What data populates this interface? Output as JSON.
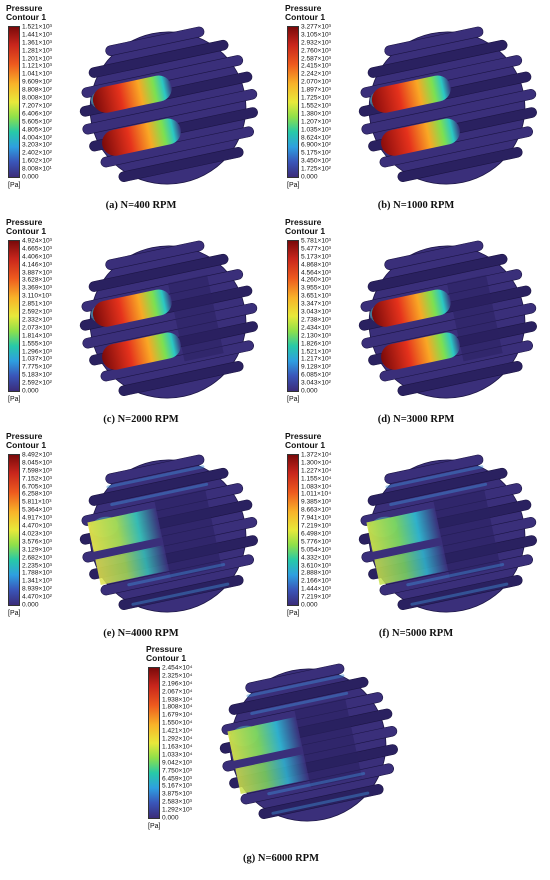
{
  "legend_title_line1": "Pressure",
  "legend_title_line2": "Contour 1",
  "unit": "[Pa]",
  "colors": {
    "background": "#ffffff",
    "body": "#3a2f7a",
    "body_dark": "#2a2160",
    "outline": "#1c1545"
  },
  "panels": [
    {
      "caption": "(a) N=400 RPM",
      "ticks": [
        "1.521×10³",
        "1.441×10³",
        "1.361×10³",
        "1.281×10³",
        "1.201×10³",
        "1.121×10³",
        "1.041×10³",
        "9.609×10²",
        "8.808×10²",
        "8.008×10²",
        "7.207×10²",
        "6.406×10²",
        "5.605×10²",
        "4.805×10²",
        "4.004×10²",
        "3.203×10²",
        "2.402×10²",
        "1.602×10²",
        "8.008×10¹",
        "0.000"
      ]
    },
    {
      "caption": "(b) N=1000 RPM",
      "ticks": [
        "3.277×10³",
        "3.105×10³",
        "2.932×10³",
        "2.760×10³",
        "2.587×10³",
        "2.415×10³",
        "2.242×10³",
        "2.070×10³",
        "1.897×10³",
        "1.725×10³",
        "1.552×10³",
        "1.380×10³",
        "1.207×10³",
        "1.035×10³",
        "8.624×10²",
        "6.900×10²",
        "5.175×10²",
        "3.450×10²",
        "1.725×10²",
        "0.000"
      ]
    },
    {
      "caption": "(c) N=2000 RPM",
      "ticks": [
        "4.924×10³",
        "4.665×10³",
        "4.406×10³",
        "4.146×10³",
        "3.887×10³",
        "3.628×10³",
        "3.369×10³",
        "3.110×10³",
        "2.851×10³",
        "2.592×10³",
        "2.332×10³",
        "2.073×10³",
        "1.814×10³",
        "1.555×10³",
        "1.296×10³",
        "1.037×10³",
        "7.775×10²",
        "5.183×10²",
        "2.592×10²",
        "0.000"
      ]
    },
    {
      "caption": "(d) N=3000 RPM",
      "ticks": [
        "5.781×10³",
        "5.477×10³",
        "5.173×10³",
        "4.868×10³",
        "4.564×10³",
        "4.260×10³",
        "3.955×10³",
        "3.651×10³",
        "3.347×10³",
        "3.043×10³",
        "2.738×10³",
        "2.434×10³",
        "2.130×10³",
        "1.826×10³",
        "1.521×10³",
        "1.217×10³",
        "9.128×10²",
        "6.085×10²",
        "3.043×10²",
        "0.000"
      ]
    },
    {
      "caption": "(e) N=4000 RPM",
      "ticks": [
        "8.492×10³",
        "8.045×10³",
        "7.598×10³",
        "7.152×10³",
        "6.705×10³",
        "6.258×10³",
        "5.811×10³",
        "5.364×10³",
        "4.917×10³",
        "4.470×10³",
        "4.023×10³",
        "3.576×10³",
        "3.129×10³",
        "2.682×10³",
        "2.235×10³",
        "1.788×10³",
        "1.341×10³",
        "8.939×10²",
        "4.470×10²",
        "0.000"
      ]
    },
    {
      "caption": "(f) N=5000 RPM",
      "ticks": [
        "1.372×10⁴",
        "1.300×10⁴",
        "1.227×10⁴",
        "1.155×10⁴",
        "1.083×10⁴",
        "1.011×10⁴",
        "9.385×10³",
        "8.663×10³",
        "7.941×10³",
        "7.219×10³",
        "6.498×10³",
        "5.776×10³",
        "5.054×10³",
        "4.332×10³",
        "3.610×10³",
        "2.888×10³",
        "2.166×10³",
        "1.444×10³",
        "7.219×10²",
        "0.000"
      ]
    },
    {
      "caption": "(g) N=6000 RPM",
      "ticks": [
        "2.454×10⁴",
        "2.325×10⁴",
        "2.196×10⁴",
        "2.067×10⁴",
        "1.938×10⁴",
        "1.808×10⁴",
        "1.679×10⁴",
        "1.550×10⁴",
        "1.421×10⁴",
        "1.292×10⁴",
        "1.163×10⁴",
        "1.033×10⁴",
        "9.042×10³",
        "7.750×10³",
        "6.459×10³",
        "5.167×10³",
        "3.875×10³",
        "2.583×10³",
        "1.292×10³",
        "0.000"
      ]
    }
  ]
}
